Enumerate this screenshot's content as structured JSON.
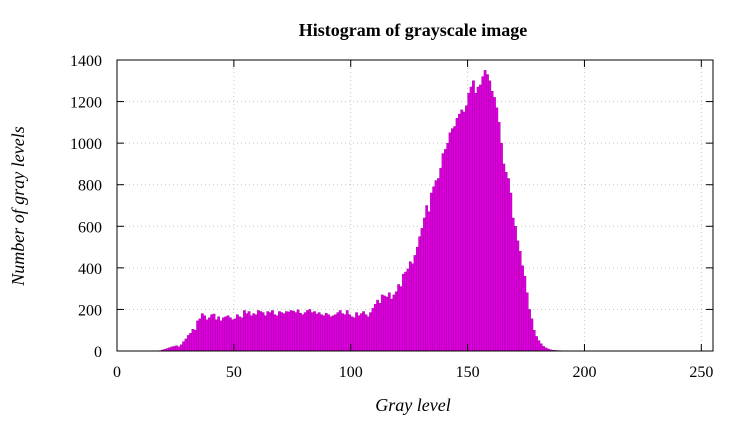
{
  "chart_data": {
    "type": "bar",
    "title": "Histogram of grayscale image",
    "xlabel": "Gray level",
    "ylabel": "Number of gray levels",
    "xlim": [
      0,
      255
    ],
    "ylim": [
      0,
      1400
    ],
    "xticks": [
      0,
      50,
      100,
      150,
      200,
      250
    ],
    "yticks": [
      0,
      200,
      400,
      600,
      800,
      1000,
      1200,
      1400
    ],
    "grid": true,
    "legend": "none",
    "bar_color": "#dd00dd",
    "bar_edge_color": "#990099",
    "grid_color": "#c8c8c8",
    "x": [
      0,
      1,
      2,
      3,
      4,
      5,
      6,
      7,
      8,
      9,
      10,
      11,
      12,
      13,
      14,
      15,
      16,
      17,
      18,
      19,
      20,
      21,
      22,
      23,
      24,
      25,
      26,
      27,
      28,
      29,
      30,
      31,
      32,
      33,
      34,
      35,
      36,
      37,
      38,
      39,
      40,
      41,
      42,
      43,
      44,
      45,
      46,
      47,
      48,
      49,
      50,
      51,
      52,
      53,
      54,
      55,
      56,
      57,
      58,
      59,
      60,
      61,
      62,
      63,
      64,
      65,
      66,
      67,
      68,
      69,
      70,
      71,
      72,
      73,
      74,
      75,
      76,
      77,
      78,
      79,
      80,
      81,
      82,
      83,
      84,
      85,
      86,
      87,
      88,
      89,
      90,
      91,
      92,
      93,
      94,
      95,
      96,
      97,
      98,
      99,
      100,
      101,
      102,
      103,
      104,
      105,
      106,
      107,
      108,
      109,
      110,
      111,
      112,
      113,
      114,
      115,
      116,
      117,
      118,
      119,
      120,
      121,
      122,
      123,
      124,
      125,
      126,
      127,
      128,
      129,
      130,
      131,
      132,
      133,
      134,
      135,
      136,
      137,
      138,
      139,
      140,
      141,
      142,
      143,
      144,
      145,
      146,
      147,
      148,
      149,
      150,
      151,
      152,
      153,
      154,
      155,
      156,
      157,
      158,
      159,
      160,
      161,
      162,
      163,
      164,
      165,
      166,
      167,
      168,
      169,
      170,
      171,
      172,
      173,
      174,
      175,
      176,
      177,
      178,
      179,
      180,
      181,
      182,
      183,
      184,
      185,
      186,
      187,
      188,
      189,
      190,
      191,
      192,
      193,
      194,
      195,
      196,
      197,
      198,
      199,
      200,
      201,
      202,
      203,
      204,
      205,
      206,
      207,
      208,
      209,
      210,
      211,
      212,
      213,
      214,
      215,
      216,
      217,
      218,
      219,
      220,
      221,
      222,
      223,
      224,
      225,
      226,
      227,
      228,
      229,
      230,
      231,
      232,
      233,
      234,
      235,
      236,
      237,
      238,
      239,
      240,
      241,
      242,
      243,
      244,
      245,
      246,
      247,
      248,
      249,
      250,
      251,
      252,
      253,
      254,
      255
    ],
    "values": [
      0,
      0,
      0,
      0,
      0,
      0,
      0,
      0,
      0,
      0,
      0,
      0,
      0,
      0,
      0,
      0,
      0,
      0,
      2,
      5,
      8,
      12,
      16,
      20,
      22,
      25,
      20,
      30,
      45,
      58,
      75,
      85,
      105,
      100,
      145,
      155,
      180,
      170,
      150,
      160,
      175,
      178,
      150,
      165,
      145,
      160,
      165,
      170,
      160,
      150,
      155,
      175,
      165,
      160,
      195,
      180,
      190,
      170,
      180,
      175,
      195,
      190,
      185,
      170,
      190,
      185,
      195,
      175,
      170,
      190,
      185,
      180,
      190,
      188,
      195,
      192,
      185,
      198,
      182,
      175,
      185,
      195,
      200,
      185,
      190,
      178,
      185,
      175,
      170,
      182,
      175,
      165,
      170,
      175,
      185,
      195,
      180,
      175,
      195,
      175,
      165,
      160,
      185,
      170,
      180,
      190,
      175,
      165,
      185,
      205,
      225,
      245,
      230,
      270,
      265,
      260,
      280,
      250,
      270,
      285,
      320,
      310,
      370,
      380,
      395,
      430,
      420,
      460,
      500,
      550,
      590,
      640,
      700,
      670,
      760,
      790,
      820,
      830,
      880,
      950,
      970,
      1000,
      1050,
      1070,
      1080,
      1120,
      1140,
      1160,
      1150,
      1180,
      1240,
      1270,
      1300,
      1240,
      1270,
      1280,
      1320,
      1350,
      1330,
      1300,
      1250,
      1220,
      1170,
      1100,
      1000,
      900,
      860,
      830,
      760,
      640,
      600,
      530,
      480,
      410,
      360,
      280,
      200,
      155,
      100,
      70,
      50,
      35,
      22,
      15,
      10,
      6,
      4,
      3,
      2,
      2,
      1,
      0,
      0,
      0,
      0,
      0,
      0,
      0,
      0,
      0,
      0,
      0,
      0,
      0,
      0,
      0,
      0,
      0,
      0,
      0,
      0,
      0,
      0,
      0,
      0,
      0,
      0,
      0,
      0,
      0,
      0,
      0,
      0,
      0,
      0,
      0,
      0,
      0,
      0,
      0,
      0,
      0,
      0,
      0,
      0,
      0,
      0,
      0,
      0,
      0,
      0,
      0,
      0,
      0,
      0,
      0,
      0,
      0,
      0,
      0,
      0,
      0,
      0,
      0,
      0,
      0
    ]
  }
}
